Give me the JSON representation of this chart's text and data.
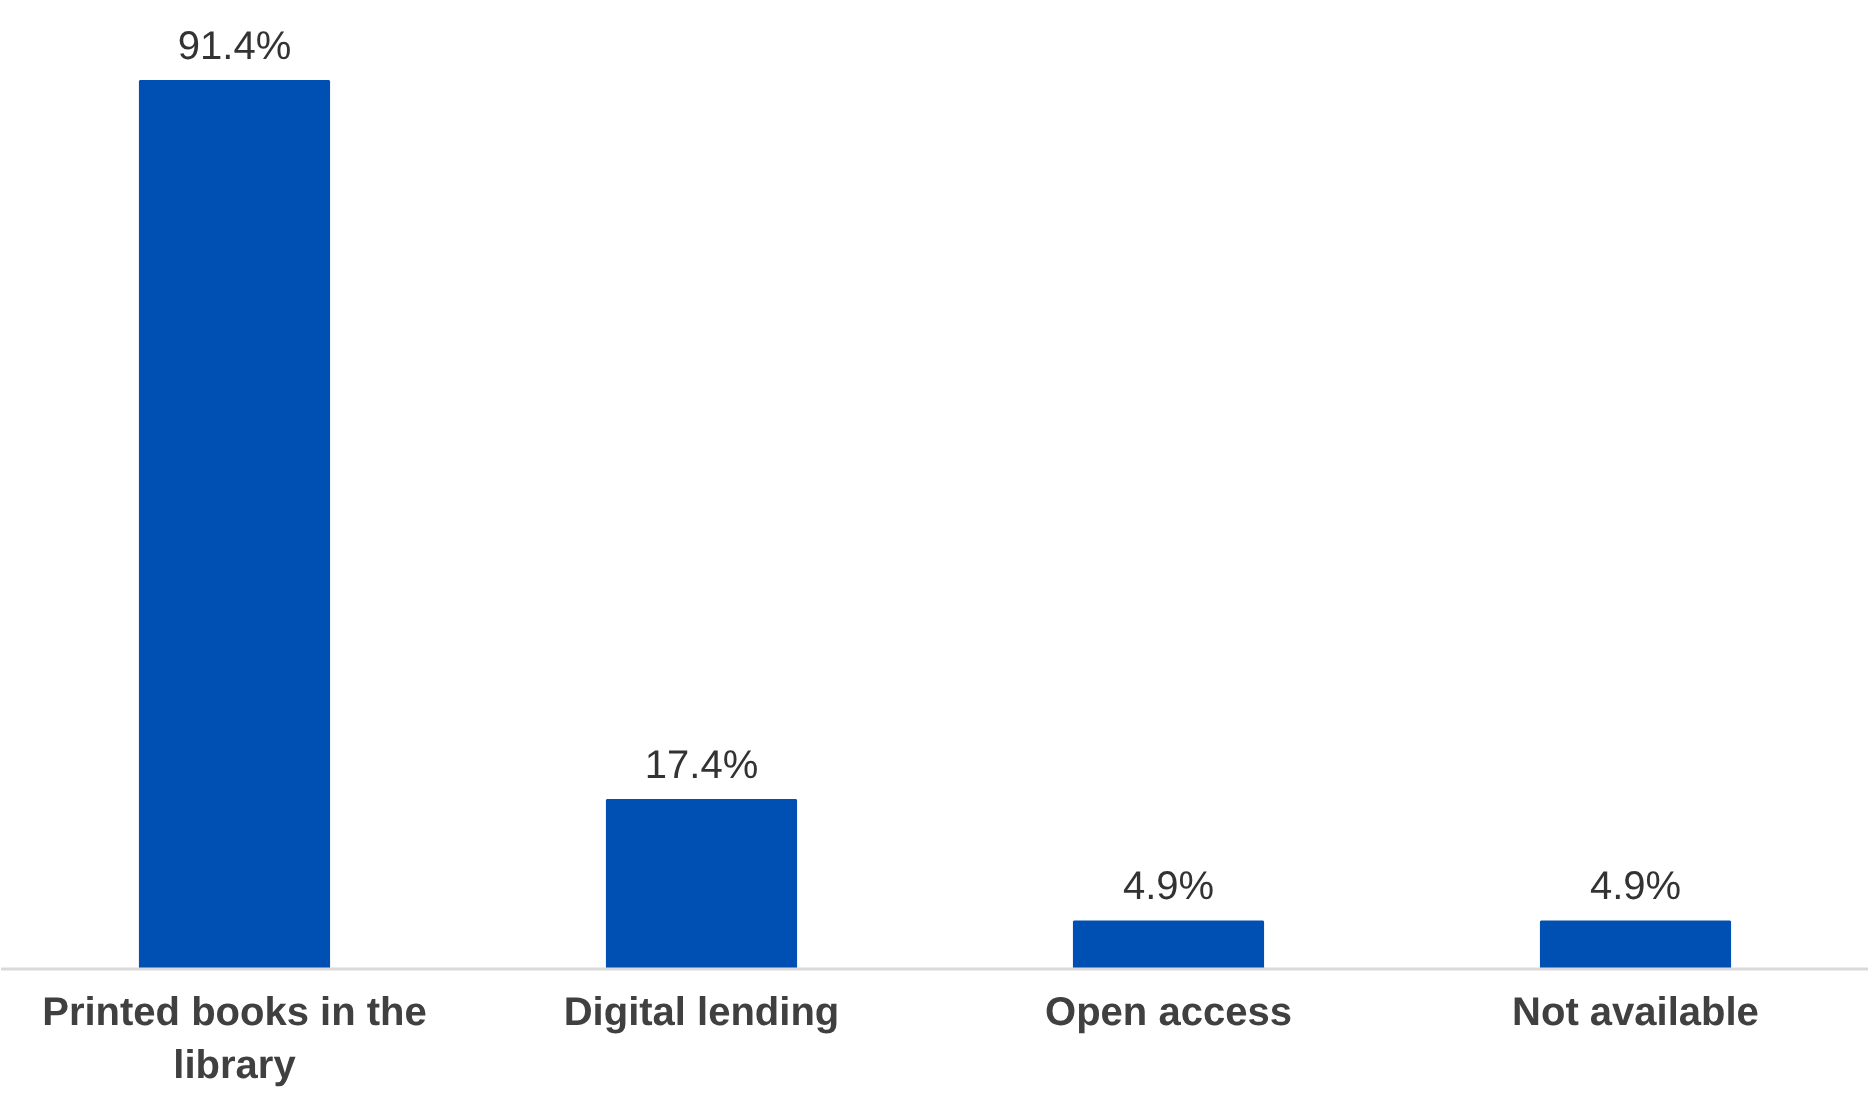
{
  "chart_data": {
    "type": "bar",
    "categories": [
      "Printed books in the library",
      "Digital lending",
      "Open access",
      "Not available"
    ],
    "values": [
      91.4,
      17.4,
      4.9,
      4.9
    ],
    "value_labels": [
      "91.4%",
      "17.4%",
      "4.9%",
      "4.9%"
    ],
    "color": "#0050b4",
    "tick_labels": "x"
  }
}
